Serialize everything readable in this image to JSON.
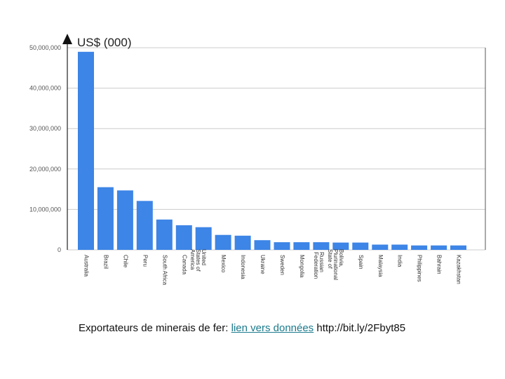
{
  "chart_data": {
    "type": "bar",
    "unit_label": "US$ (000)",
    "categories": [
      "Australia",
      "Brazil",
      "Chile",
      "Peru",
      "South Africa",
      "Canada",
      "United States of America",
      "Mexico",
      "Indonesia",
      "Ukraine",
      "Sweden",
      "Mongolia",
      "Russian Federation",
      "Bolivia, Plurinational State of",
      "Spain",
      "Malaysia",
      "India",
      "Philippines",
      "Bahrain",
      "Kazakhstan"
    ],
    "values": [
      49000000,
      15500000,
      14700000,
      12100000,
      7500000,
      6100000,
      5600000,
      3700000,
      3500000,
      2400000,
      1900000,
      1900000,
      1900000,
      1800000,
      1800000,
      1300000,
      1300000,
      1100000,
      1100000,
      1100000
    ],
    "yticks": [
      {
        "value": 0,
        "label": "0"
      },
      {
        "value": 10000000,
        "label": "10,000,000"
      },
      {
        "value": 20000000,
        "label": "20,000,000"
      },
      {
        "value": 30000000,
        "label": "30,000,000"
      },
      {
        "value": 40000000,
        "label": "40,000,000"
      },
      {
        "value": 50000000,
        "label": "50,000,000"
      }
    ],
    "ylim": [
      0,
      50000000
    ],
    "grid": true,
    "legend": "none",
    "bar_color": "#3d85e6",
    "grid_color": "#cccccc"
  },
  "caption": {
    "before": "Exportateurs de minerais de fer: ",
    "link": "lien vers données",
    "after": " http://bit.ly/2Fbyt85"
  }
}
